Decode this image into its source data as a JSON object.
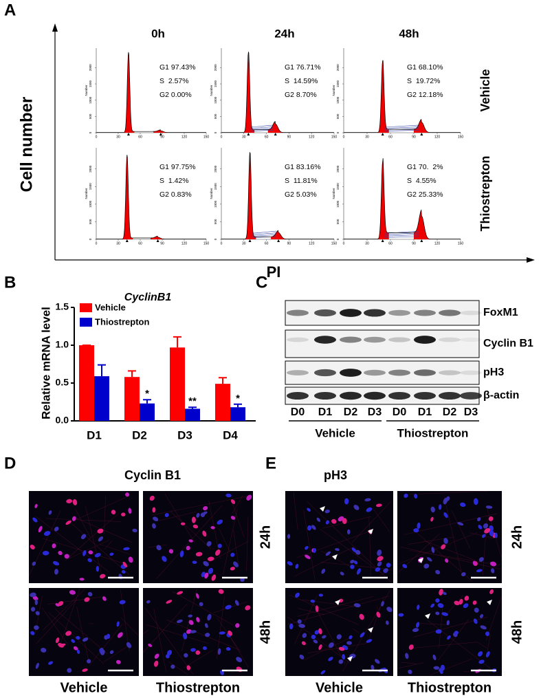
{
  "panel_labels": [
    "A",
    "B",
    "C",
    "D",
    "E"
  ],
  "panel_a": {
    "y_label": "Cell number",
    "x_label": "PI",
    "columns": [
      "0h",
      "24h",
      "48h"
    ],
    "rows": [
      "Vehicle",
      "Thiostrepton"
    ],
    "cells": [
      [
        [
          "G1 97.43%",
          "S  2.57%",
          "G2 0.00%"
        ],
        [
          "G1 76.71%",
          "S  14.59%",
          "G2 8.70%"
        ],
        [
          "G1 68.10%",
          "S  19.72%",
          "G2 12.18%"
        ]
      ],
      [
        [
          "G1 97.75%",
          "S  1.42%",
          "G2 0.83%"
        ],
        [
          "G1 83.16%",
          "S  11.81%",
          "G2 5.03%"
        ],
        [
          "G1 70.  2%",
          "S  4.55%",
          "G2 25.33%"
        ]
      ]
    ],
    "histogram_xticks": [
      0,
      30,
      60,
      90,
      120,
      150
    ],
    "histogram_yticks": [
      0,
      500,
      1000,
      1500,
      2000
    ],
    "histogram_ylabel": "Number"
  },
  "chart_data": {
    "type": "bar",
    "title": "CyclinB1",
    "y_label": "Relative mRNA level",
    "categories": [
      "D1",
      "D2",
      "D3",
      "D4"
    ],
    "series": [
      {
        "name": "Vehicle",
        "color": "#ff0000",
        "values": [
          1.0,
          0.58,
          0.97,
          0.49
        ],
        "errors": [
          0,
          0.08,
          0.14,
          0.08
        ]
      },
      {
        "name": "Thiostrepton",
        "color": "#0000cc",
        "values": [
          0.59,
          0.23,
          0.16,
          0.18
        ],
        "errors": [
          0.15,
          0.05,
          0.02,
          0.04
        ],
        "significance": [
          null,
          "*",
          "**",
          "*"
        ]
      }
    ],
    "ylim": [
      0,
      1.5
    ],
    "yticks": [
      {
        "value": 0,
        "label": "0.0"
      },
      0.5,
      {
        "value": 1,
        "label": "1.0"
      },
      1.5
    ],
    "legend": "upper left"
  },
  "panel_c": {
    "proteins": [
      "FoxM1",
      "Cyclin B1",
      "pH3",
      "β-actin"
    ],
    "lanes": [
      "D0",
      "D1",
      "D2",
      "D3",
      "D0",
      "D1",
      "D2",
      "D3"
    ],
    "groups": [
      "Vehicle",
      "Thiostrepton"
    ]
  },
  "panel_d": {
    "title": "Cyclin B1",
    "rows": [
      "24h",
      "48h"
    ],
    "columns": [
      "Vehicle",
      "Thiostrepton"
    ]
  },
  "panel_e": {
    "title": "pH3",
    "rows": [
      "24h",
      "48h"
    ],
    "columns": [
      "Vehicle",
      "Thiostrepton"
    ]
  }
}
